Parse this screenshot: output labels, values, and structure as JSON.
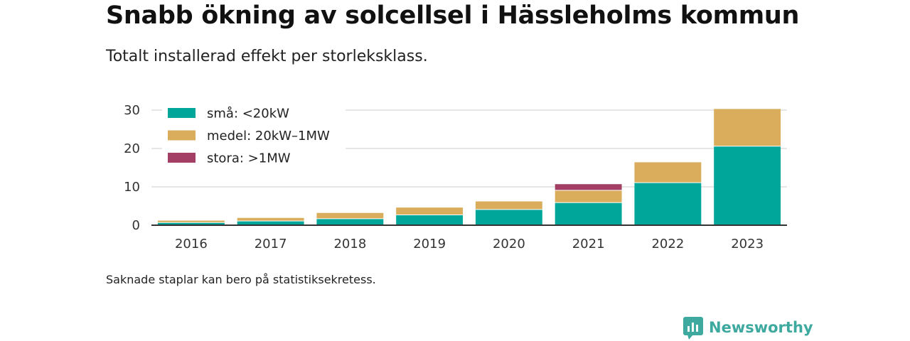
{
  "title": "Snabb ökning av solcellsel i Hässleholms kommun",
  "subtitle": "Totalt installerad effekt per storleksklass.",
  "footnote": "Saknade staplar kan bero på statistiksekretess.",
  "brand": {
    "name": "Newsworthy",
    "icon": "newsworthy-logo-icon",
    "color": "#3ea99f"
  },
  "chart_data": {
    "type": "bar",
    "stacked": true,
    "categories": [
      "2016",
      "2017",
      "2018",
      "2019",
      "2020",
      "2021",
      "2022",
      "2023"
    ],
    "series": [
      {
        "name": "små: <20kW",
        "color": "#00a69a",
        "values": [
          0.6,
          1.0,
          1.6,
          2.6,
          4.0,
          5.8,
          11.0,
          20.5
        ]
      },
      {
        "name": "medel: 20kW–1MW",
        "color": "#d9ad5b",
        "values": [
          0.6,
          0.9,
          1.6,
          2.0,
          2.2,
          3.2,
          5.4,
          9.8
        ]
      },
      {
        "name": "stora: >1MW",
        "color": "#a33f64",
        "values": [
          null,
          null,
          null,
          null,
          null,
          1.7,
          null,
          null
        ]
      }
    ],
    "ylim": [
      0,
      30
    ],
    "yticks": [
      0,
      10,
      20,
      30
    ],
    "grid": true,
    "legend_position": "top-left",
    "xlabel": "",
    "ylabel": ""
  }
}
